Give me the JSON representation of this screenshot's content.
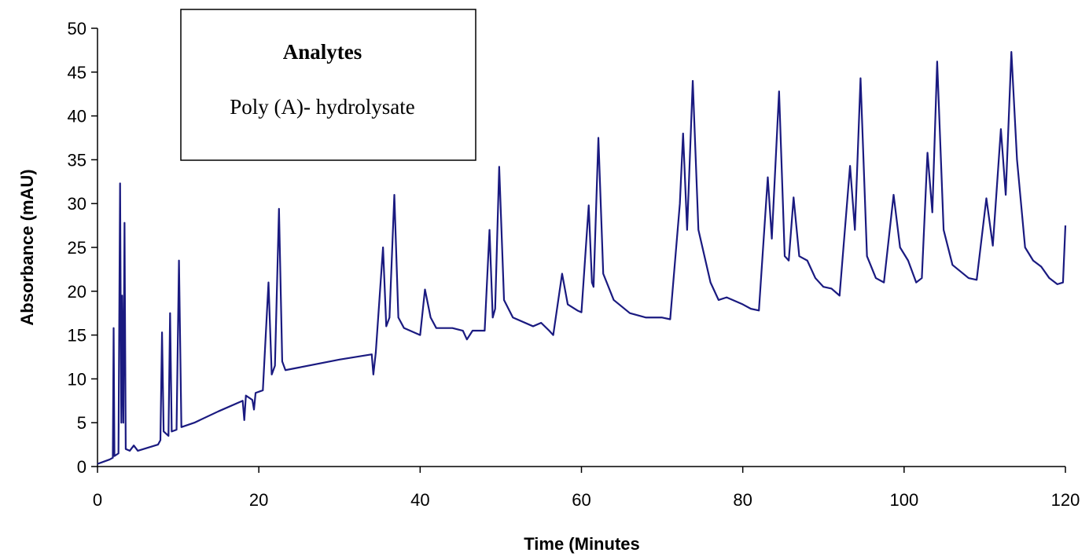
{
  "chart_data": {
    "type": "line",
    "x_label": "Time (Minutes",
    "y_label": "Absorbance (mAU)",
    "annotation_title": "Analytes",
    "annotation_text": "Poly (A)- hydrolysate",
    "color": "#1a1a80",
    "xlim": [
      0,
      120
    ],
    "xticks": [
      0,
      20,
      40,
      60,
      80,
      100,
      120
    ],
    "ylim": [
      0,
      50
    ],
    "yticks": [
      0,
      5,
      10,
      15,
      20,
      25,
      30,
      35,
      40,
      45,
      50
    ],
    "x": [
      0,
      1.5,
      1.9,
      2.0,
      2.1,
      2.6,
      2.8,
      2.95,
      3.05,
      3.2,
      3.35,
      3.5,
      4.0,
      4.5,
      5.0,
      7.5,
      7.8,
      8.0,
      8.2,
      8.8,
      9.0,
      9.2,
      9.8,
      10.1,
      10.4,
      12,
      15,
      18,
      18.2,
      18.4,
      19.2,
      19.4,
      19.6,
      20.5,
      21.2,
      21.6,
      22.0,
      22.5,
      22.9,
      23.3,
      25,
      30,
      34,
      34.2,
      34.5,
      35.4,
      35.8,
      36.2,
      36.8,
      37.3,
      38,
      40,
      40.6,
      41.3,
      42,
      44,
      45.3,
      45.8,
      46.5,
      48,
      48.6,
      49,
      49.3,
      49.8,
      50.4,
      51.5,
      54,
      55,
      56,
      56.5,
      57.6,
      58.3,
      59.5,
      60,
      60.9,
      61.3,
      61.5,
      62.1,
      62.7,
      64,
      66,
      68,
      70,
      71,
      72.2,
      72.6,
      73.1,
      73.8,
      74.5,
      76,
      77,
      78,
      80,
      81,
      82,
      83.1,
      83.6,
      84.5,
      85.2,
      85.7,
      86.3,
      87,
      88,
      89,
      90,
      91,
      92,
      93.3,
      93.9,
      94.6,
      95.4,
      96.5,
      97.5,
      98.7,
      99.5,
      100.5,
      101.5,
      102.2,
      102.9,
      103.5,
      104.1,
      104.9,
      106,
      108,
      109,
      110.2,
      111,
      112,
      112.6,
      113.3,
      114,
      115,
      116,
      117,
      118,
      119,
      119.7,
      120
    ],
    "values": [
      0.3,
      0.8,
      1.0,
      15.8,
      1.2,
      1.5,
      32.3,
      5,
      19.5,
      5,
      27.8,
      2,
      1.8,
      2.4,
      1.8,
      2.5,
      3,
      15.3,
      4,
      3.5,
      17.5,
      4,
      4.2,
      23.5,
      4.5,
      5,
      6.3,
      7.5,
      5.3,
      8.1,
      7.6,
      6.5,
      8.4,
      8.7,
      21,
      10.5,
      11.5,
      29.4,
      12,
      11,
      11.3,
      12.2,
      12.8,
      10.5,
      13,
      25,
      16,
      17,
      31,
      17,
      15.8,
      15,
      20.2,
      17,
      15.8,
      15.8,
      15.5,
      14.5,
      15.5,
      15.5,
      27,
      17,
      18,
      34.2,
      19,
      17,
      16,
      16.4,
      15.5,
      15,
      22,
      18.5,
      17.8,
      17.6,
      29.8,
      21,
      20.5,
      37.5,
      22,
      19,
      17.5,
      17,
      17,
      16.8,
      30,
      38,
      27,
      44,
      27,
      21,
      19,
      19.3,
      18.5,
      18,
      17.8,
      33,
      26,
      42.8,
      24,
      23.5,
      30.7,
      24,
      23.5,
      21.5,
      20.5,
      20.3,
      19.5,
      34.3,
      27,
      44.3,
      24,
      21.5,
      21,
      31,
      25,
      23.5,
      21,
      21.5,
      35.8,
      29,
      46.2,
      27,
      23,
      21.5,
      21.3,
      30.6,
      25.2,
      38.5,
      31,
      47.3,
      35,
      25,
      23.5,
      22.8,
      21.5,
      20.8,
      21,
      27.5
    ]
  }
}
